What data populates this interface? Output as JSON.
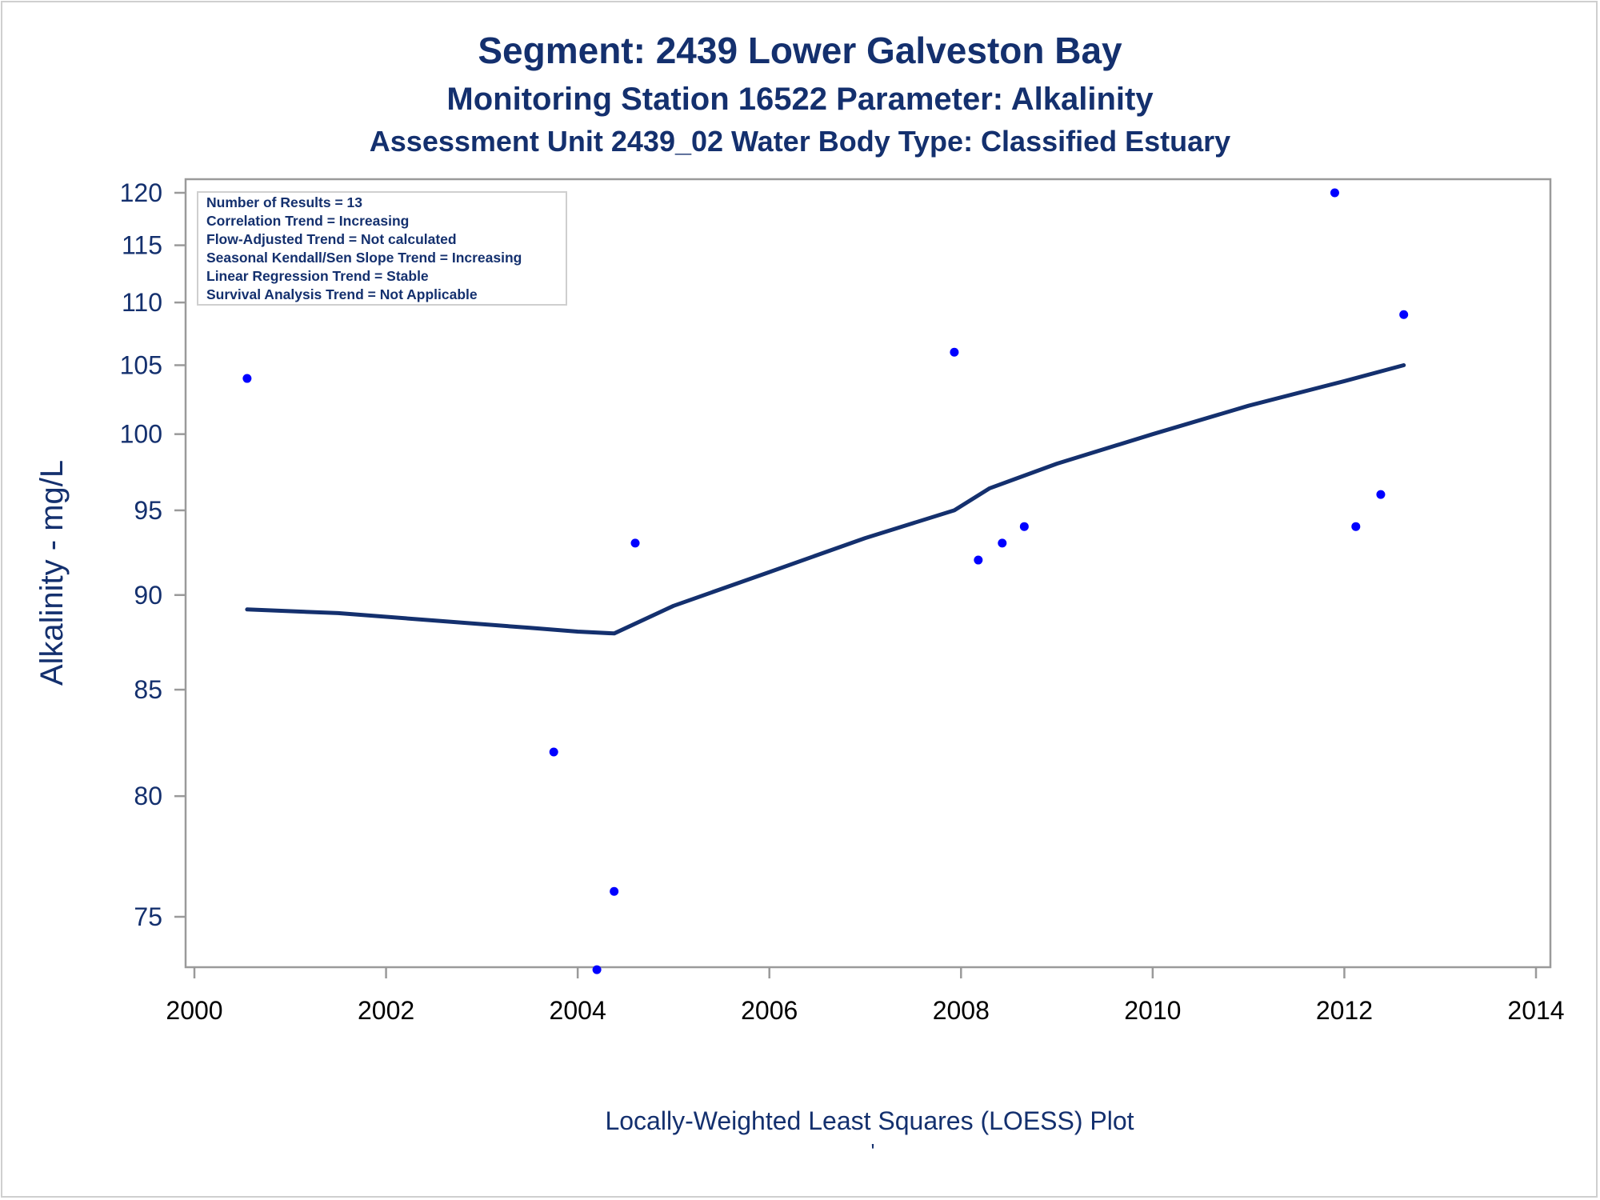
{
  "colors": {
    "text": "#14306e",
    "marker": "#0000ff",
    "loess_line": "#14306e",
    "axis": "#9a9a9a",
    "stats_border": "#cfcfcf"
  },
  "chart_data": {
    "type": "scatter",
    "title": "Segment: 2439  Lower Galveston Bay",
    "subtitle": "Monitoring Station 16522 Parameter: Alkalinity",
    "subtitle2": "Assessment Unit 2439_02   Water Body Type: Classified Estuary",
    "xlabel": "Locally-Weighted Least Squares (LOESS) Plot",
    "footnote": "'",
    "ylabel": "Alkalinity - mg/L",
    "xlim": [
      2000,
      2014
    ],
    "ylim": [
      73,
      120
    ],
    "y_scale": "reciprocal",
    "x_ticks": [
      "2000",
      "2002",
      "2004",
      "2006",
      "2008",
      "2010",
      "2012",
      "2014"
    ],
    "y_ticks": [
      "75",
      "80",
      "85",
      "90",
      "95",
      "100",
      "105",
      "110",
      "115",
      "120"
    ],
    "grid": false,
    "stats_box": [
      "Number of Results = 13",
      "Correlation Trend = Increasing",
      "Flow-Adjusted Trend = Not calculated",
      "Seasonal Kendall/Sen Slope Trend = Increasing",
      "Linear Regression Trend = Stable",
      "Survival Analysis Trend = Not Applicable"
    ],
    "stats_placement": "top-left",
    "series": [
      {
        "type": "scatter",
        "x": [
          2000.55,
          2003.75,
          2004.2,
          2004.38,
          2004.6,
          2007.93,
          2008.18,
          2008.43,
          2008.66,
          2011.9,
          2012.12,
          2012.38,
          2012.62
        ],
        "y": [
          104,
          82,
          73,
          76,
          93,
          106,
          92,
          93,
          94,
          120,
          94,
          96,
          109
        ]
      },
      {
        "type": "line",
        "x": [
          2000.55,
          2001.5,
          2002.5,
          2003.5,
          2004.0,
          2004.38,
          2005.0,
          2006.0,
          2007.0,
          2007.93,
          2008.3,
          2009.0,
          2010.0,
          2011.0,
          2012.0,
          2012.62
        ],
        "y": [
          89.2,
          89.0,
          88.6,
          88.2,
          88.0,
          87.9,
          89.4,
          91.3,
          93.3,
          95.0,
          96.4,
          98.0,
          100.0,
          102.0,
          103.8,
          105.0
        ]
      }
    ]
  }
}
